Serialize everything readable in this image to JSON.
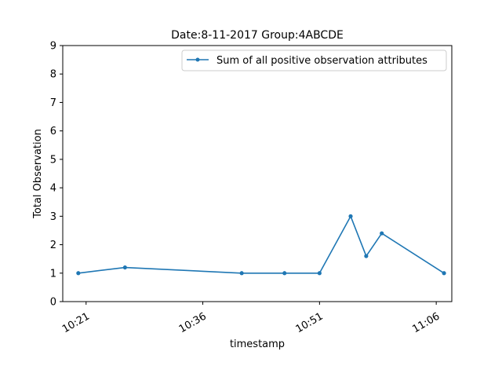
{
  "chart_data": {
    "type": "line",
    "title": "Date:8-11-2017  Group:4ABCDE",
    "xlabel": "timestamp",
    "ylabel": "Total Observation",
    "ylim": [
      0,
      9
    ],
    "xlim": [
      "10:18",
      "11:08"
    ],
    "yticks": [
      0,
      1,
      2,
      3,
      4,
      5,
      6,
      7,
      8,
      9
    ],
    "xticks": [
      "10:21",
      "10:36",
      "10:51",
      "11:06"
    ],
    "legend_position": "top-right",
    "grid": false,
    "series": [
      {
        "name": "Sum of all positive observation attributes",
        "color": "#1f77b4",
        "x": [
          "10:20",
          "10:26",
          "10:41",
          "10:46:30",
          "10:51",
          "10:55",
          "10:57",
          "10:59",
          "11:07"
        ],
        "y": [
          1,
          1.2,
          1,
          1,
          1,
          3,
          1.6,
          2.4,
          1
        ]
      }
    ]
  }
}
